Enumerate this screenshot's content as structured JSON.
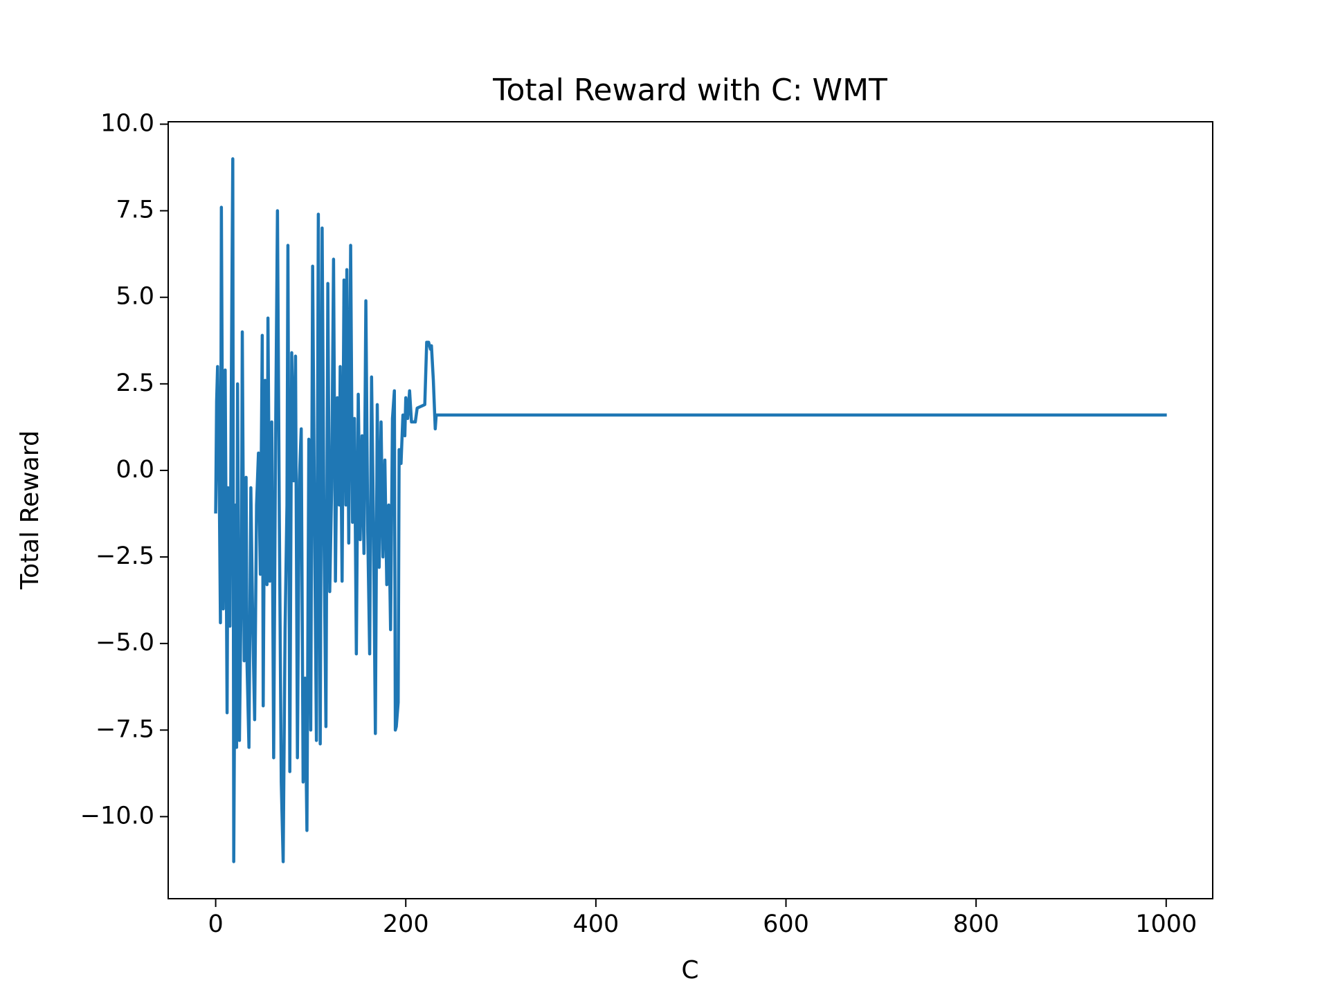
{
  "chart_data": {
    "type": "line",
    "title": "Total Reward with C: WMT",
    "x_label": "C",
    "y_label": "Total Reward",
    "xlim": [
      -49.95,
      1048.95
    ],
    "xticks": [
      0,
      200,
      400,
      600,
      800,
      1000
    ],
    "ylim": [
      -12.37,
      10.07
    ],
    "yticks": [
      {
        "value": -10,
        "label": "−10.0"
      },
      {
        "value": -7.5,
        "label": "−7.5"
      },
      {
        "value": -5,
        "label": "−5.0"
      },
      {
        "value": -2.5,
        "label": "−2.5"
      },
      {
        "value": 0,
        "label": "0.0"
      },
      {
        "value": 2.5,
        "label": "2.5"
      },
      {
        "value": 5,
        "label": "5.0"
      },
      {
        "value": 7.5,
        "label": "7.5"
      },
      {
        "value": 10,
        "label": "10.0"
      }
    ],
    "grid": false,
    "x": [
      0,
      1,
      2,
      4,
      5,
      6,
      8,
      10,
      12,
      13,
      15,
      17,
      18,
      19,
      21,
      22,
      23,
      25,
      27,
      28,
      30,
      32,
      33,
      35,
      37,
      39,
      41,
      43,
      45,
      47,
      49,
      50,
      52,
      54,
      55,
      57,
      59,
      61,
      63,
      65,
      67,
      69,
      71,
      73,
      75,
      76,
      78,
      80,
      82,
      84,
      86,
      88,
      90,
      92,
      94,
      96,
      98,
      100,
      102,
      104,
      106,
      108,
      110,
      112,
      114,
      116,
      118,
      120,
      122,
      124,
      126,
      128,
      130,
      131,
      133,
      135,
      137,
      138,
      140,
      142,
      144,
      146,
      148,
      150,
      152,
      154,
      156,
      158,
      160,
      162,
      164,
      166,
      168,
      170,
      172,
      174,
      176,
      178,
      180,
      182,
      184,
      186,
      188,
      189,
      190,
      192,
      193,
      195,
      197,
      199,
      200,
      202,
      204,
      206,
      210,
      212,
      220,
      222,
      224,
      226,
      227,
      229,
      231,
      232,
      999
    ],
    "series": [
      {
        "name": "Total Reward",
        "color": "#1f77b4",
        "values": [
          -1.2,
          2.0,
          3.0,
          -1.2,
          -4.4,
          7.6,
          -4.0,
          2.9,
          -7.0,
          -0.5,
          -4.5,
          5.0,
          9.0,
          -11.3,
          -1.0,
          -8.0,
          2.5,
          -7.8,
          -3.0,
          4.0,
          -5.5,
          -0.2,
          -5.6,
          -8.0,
          -0.5,
          -4.5,
          -7.2,
          -1.0,
          0.5,
          -3.0,
          3.9,
          -6.8,
          2.6,
          -3.3,
          4.4,
          -3.2,
          1.4,
          -8.3,
          0.8,
          7.5,
          -1.5,
          -9.0,
          -11.3,
          -4.6,
          -1.0,
          6.5,
          -8.7,
          3.4,
          -0.3,
          3.3,
          -8.3,
          -0.3,
          1.2,
          -9.0,
          -6.0,
          -10.4,
          0.9,
          -7.5,
          5.9,
          -1.5,
          -7.8,
          7.4,
          -7.9,
          7.0,
          -2.0,
          -7.4,
          5.4,
          -3.5,
          -0.5,
          6.1,
          -3.2,
          2.1,
          -1.0,
          3.0,
          -3.2,
          5.5,
          -1.0,
          5.8,
          -2.1,
          6.5,
          -1.5,
          1.5,
          -5.3,
          2.2,
          -2.0,
          1.0,
          -2.4,
          4.9,
          -1.8,
          -5.3,
          2.7,
          -1.5,
          -7.6,
          1.9,
          -2.8,
          1.4,
          -2.5,
          0.3,
          -3.3,
          -1.0,
          -4.6,
          1.5,
          2.3,
          -7.5,
          -7.4,
          -6.7,
          0.6,
          0.2,
          1.6,
          1.0,
          2.1,
          1.5,
          2.3,
          1.4,
          1.4,
          1.8,
          1.9,
          3.7,
          3.7,
          3.5,
          3.6,
          2.6,
          1.2,
          1.6,
          1.6
        ]
      }
    ]
  }
}
